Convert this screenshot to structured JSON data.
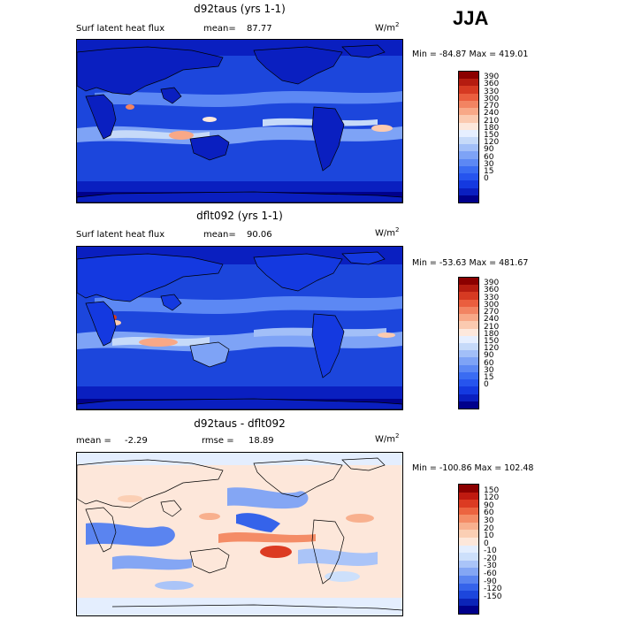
{
  "season": "JJA",
  "colors": {
    "abs_scale": [
      "#00008b",
      "#0a1fc0",
      "#1439e0",
      "#2654ee",
      "#3a6cf2",
      "#5c88f4",
      "#7ea3f6",
      "#a2bff8",
      "#c6daf9",
      "#e6efff",
      "#fde8dc",
      "#fbcab0",
      "#f8a887",
      "#f28462",
      "#ea5e3e",
      "#d63a22",
      "#b51c10",
      "#8b0000"
    ],
    "diff_scale": [
      "#00008b",
      "#0b24b8",
      "#1c46dc",
      "#3563ea",
      "#5a84f0",
      "#84a6f4",
      "#aac4f8",
      "#cde0fb",
      "#e4eefe",
      "#fde7da",
      "#fbcfb4",
      "#f8b08e",
      "#f48c66",
      "#ec6440",
      "#dc3b22",
      "#bf1a10",
      "#8b0000"
    ]
  },
  "panels": [
    {
      "title": "d92taus (yrs 1-1)",
      "field_label": "Surf latent heat flux",
      "mean_label": "mean=",
      "mean_value": "87.77",
      "units": "W/m",
      "units_sup": "2",
      "minmax": "Min = -84.87 Max = 419.01",
      "levels": [
        "390",
        "360",
        "330",
        "300",
        "270",
        "240",
        "210",
        "180",
        "150",
        "120",
        "90",
        "60",
        "30",
        "15",
        "0"
      ]
    },
    {
      "title": "dflt092 (yrs 1-1)",
      "field_label": "Surf latent heat flux",
      "mean_label": "mean=",
      "mean_value": "90.06",
      "units": "W/m",
      "units_sup": "2",
      "minmax": "Min = -53.63 Max = 481.67",
      "levels": [
        "390",
        "360",
        "330",
        "300",
        "270",
        "240",
        "210",
        "180",
        "150",
        "120",
        "90",
        "60",
        "30",
        "15",
        "0"
      ]
    },
    {
      "title": "d92taus - dflt092",
      "field_label": "mean =",
      "mean_value": "-2.29",
      "rmse_label": "rmse =",
      "rmse_value": "18.89",
      "units": "W/m",
      "units_sup": "2",
      "minmax": "Min = -100.86 Max = 102.48",
      "levels": [
        "150",
        "120",
        "90",
        "60",
        "30",
        "20",
        "10",
        "0",
        "-10",
        "-20",
        "-30",
        "-60",
        "-90",
        "-120",
        "-150"
      ]
    }
  ]
}
